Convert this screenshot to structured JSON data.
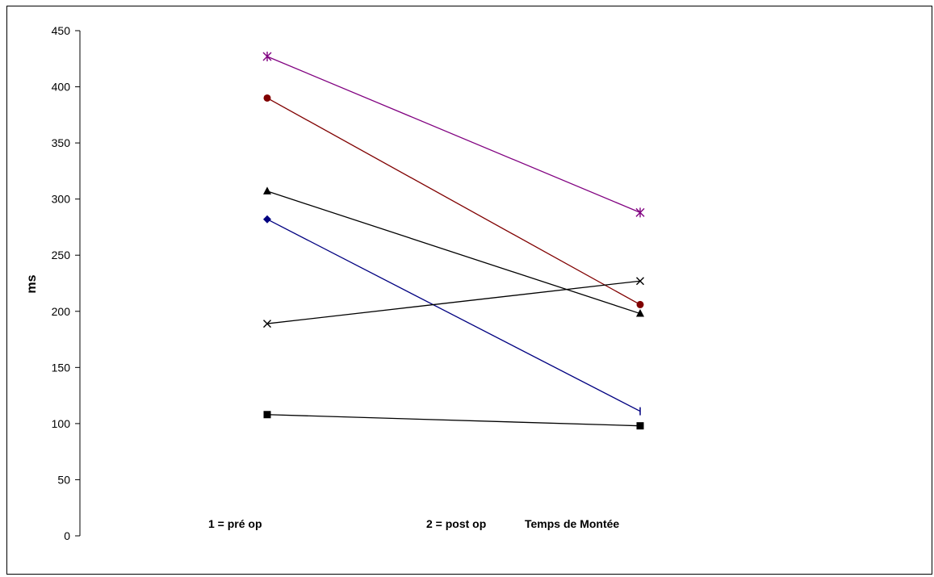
{
  "chart_data": {
    "type": "line",
    "title": "",
    "ylabel": "ms",
    "ylim": [
      0,
      450
    ],
    "yticks": [
      0,
      50,
      100,
      150,
      200,
      250,
      300,
      350,
      400,
      450
    ],
    "categories": [
      "1 = pré op",
      "2 = post op"
    ],
    "annotation": "Temps de Montée",
    "grid": false,
    "series": [
      {
        "values": [
          427,
          288
        ],
        "color": "#800080",
        "marker": "asterisk"
      },
      {
        "values": [
          390,
          206
        ],
        "color": "#800000",
        "marker": "circle"
      },
      {
        "values": [
          307,
          198
        ],
        "color": "#000000",
        "marker": "triangle"
      },
      {
        "values": [
          282,
          111
        ],
        "color": "#000080",
        "marker": "diamond"
      },
      {
        "values": [
          189,
          227
        ],
        "color": "#000000",
        "marker": "x"
      },
      {
        "values": [
          108,
          98
        ],
        "color": "#000000",
        "marker": "square"
      }
    ]
  }
}
